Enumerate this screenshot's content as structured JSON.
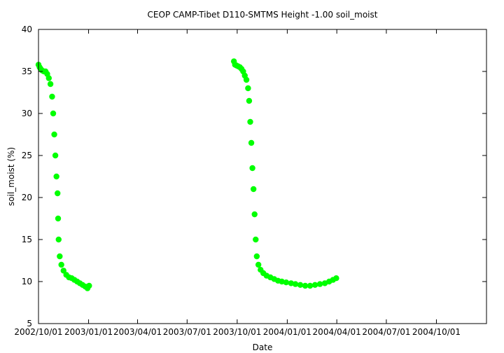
{
  "chart_data": {
    "type": "scatter",
    "title": "CEOP CAMP-Tibet D110-SMTMS Height -1.00 soil_moist",
    "xlabel": "Date",
    "ylabel": "soil_moist (%)",
    "xlim": [
      "2002-10-01",
      "2005-01-01"
    ],
    "ylim": [
      5,
      40
    ],
    "grid": false,
    "legend": "none",
    "x_tick_labels": [
      "2002/10/01",
      "2003/01/01",
      "2003/04/01",
      "2003/07/01",
      "2003/10/01",
      "2004/01/01",
      "2004/04/01",
      "2004/07/01",
      "2004/10/01"
    ],
    "x_tick_dates": [
      "2002-10-01",
      "2003-01-01",
      "2003-04-01",
      "2003-07-01",
      "2003-10-01",
      "2004-01-01",
      "2004-04-01",
      "2004-07-01",
      "2004-10-01"
    ],
    "y_ticks": [
      5,
      10,
      15,
      20,
      25,
      30,
      35,
      40
    ],
    "series": [
      {
        "color": "#00ff00",
        "points": [
          [
            "2002-10-01",
            35.8
          ],
          [
            "2002-10-03",
            35.5
          ],
          [
            "2002-10-05",
            35.3
          ],
          [
            "2002-10-08",
            35.1
          ],
          [
            "2002-10-11",
            35.0
          ],
          [
            "2002-10-14",
            35.0
          ],
          [
            "2002-10-17",
            34.7
          ],
          [
            "2002-10-20",
            34.2
          ],
          [
            "2002-10-23",
            33.5
          ],
          [
            "2002-10-26",
            32.0
          ],
          [
            "2002-10-28",
            30.0
          ],
          [
            "2002-10-30",
            27.5
          ],
          [
            "2002-11-01",
            25.0
          ],
          [
            "2002-11-03",
            22.5
          ],
          [
            "2002-11-05",
            20.5
          ],
          [
            "2002-11-06",
            17.5
          ],
          [
            "2002-11-07",
            15.0
          ],
          [
            "2002-11-09",
            13.0
          ],
          [
            "2002-11-12",
            12.0
          ],
          [
            "2002-11-16",
            11.3
          ],
          [
            "2002-11-21",
            10.8
          ],
          [
            "2002-11-26",
            10.5
          ],
          [
            "2002-12-01",
            10.4
          ],
          [
            "2002-12-06",
            10.2
          ],
          [
            "2002-12-11",
            10.0
          ],
          [
            "2002-12-16",
            9.8
          ],
          [
            "2002-12-21",
            9.6
          ],
          [
            "2002-12-26",
            9.4
          ],
          [
            "2002-12-30",
            9.2
          ],
          [
            "2003-01-02",
            9.5
          ],
          [
            "2003-09-25",
            36.2
          ],
          [
            "2003-09-27",
            35.8
          ],
          [
            "2003-09-30",
            35.7
          ],
          [
            "2003-10-03",
            35.6
          ],
          [
            "2003-10-06",
            35.5
          ],
          [
            "2003-10-09",
            35.3
          ],
          [
            "2003-10-12",
            35.0
          ],
          [
            "2003-10-15",
            34.5
          ],
          [
            "2003-10-18",
            34.0
          ],
          [
            "2003-10-21",
            33.0
          ],
          [
            "2003-10-23",
            31.5
          ],
          [
            "2003-10-25",
            29.0
          ],
          [
            "2003-10-27",
            26.5
          ],
          [
            "2003-10-29",
            23.5
          ],
          [
            "2003-10-31",
            21.0
          ],
          [
            "2003-11-02",
            18.0
          ],
          [
            "2003-11-04",
            15.0
          ],
          [
            "2003-11-06",
            13.0
          ],
          [
            "2003-11-09",
            12.0
          ],
          [
            "2003-11-13",
            11.4
          ],
          [
            "2003-11-18",
            11.0
          ],
          [
            "2003-11-24",
            10.7
          ],
          [
            "2003-12-01",
            10.5
          ],
          [
            "2003-12-08",
            10.3
          ],
          [
            "2003-12-15",
            10.1
          ],
          [
            "2003-12-22",
            10.0
          ],
          [
            "2003-12-30",
            9.9
          ],
          [
            "2004-01-08",
            9.8
          ],
          [
            "2004-01-16",
            9.7
          ],
          [
            "2004-01-25",
            9.6
          ],
          [
            "2004-02-03",
            9.5
          ],
          [
            "2004-02-12",
            9.5
          ],
          [
            "2004-02-21",
            9.6
          ],
          [
            "2004-03-01",
            9.7
          ],
          [
            "2004-03-10",
            9.8
          ],
          [
            "2004-03-18",
            10.0
          ],
          [
            "2004-03-25",
            10.2
          ],
          [
            "2004-03-31",
            10.4
          ]
        ]
      }
    ]
  }
}
